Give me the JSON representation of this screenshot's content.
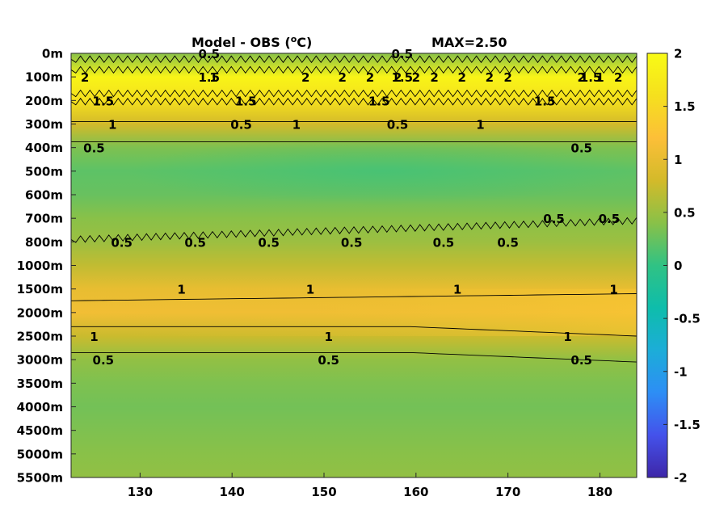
{
  "chart_data": {
    "type": "heatmap",
    "title": "Model - OBS (",
    "title_unit_super": "o",
    "title_unit_tail": "C)",
    "annotation": "MAX=2.50",
    "xlabel": "",
    "ylabel": "",
    "x_range": [
      122.5,
      184
    ],
    "x_ticks": [
      "130",
      "140",
      "150",
      "160",
      "170",
      "180"
    ],
    "y_ticks": [
      "0m",
      "100m",
      "200m",
      "300m",
      "400m",
      "500m",
      "600m",
      "700m",
      "800m",
      "1000m",
      "1500m",
      "2000m",
      "2500m",
      "3000m",
      "3500m",
      "4000m",
      "4500m",
      "5000m",
      "5500m"
    ],
    "colorbar": {
      "range": [
        -2,
        2
      ],
      "ticks": [
        "2",
        "1.5",
        "1",
        "0.5",
        "0",
        "-0.5",
        "-1",
        "-1.5",
        "-2"
      ],
      "colormap": "parula",
      "colors": [
        "#3e26a8",
        "#4452eb",
        "#2d8ef5",
        "#1cadd8",
        "#0ebdab",
        "#30c284",
        "#89c148",
        "#d3ba2a",
        "#fcbf38",
        "#f5e01e",
        "#f9fb15"
      ]
    },
    "depth_profile": [
      {
        "depth": "0m",
        "value": 0.4
      },
      {
        "depth": "100m",
        "value": 1.9
      },
      {
        "depth": "200m",
        "value": 1.6
      },
      {
        "depth": "300m",
        "value": 0.8
      },
      {
        "depth": "400m",
        "value": 0.35
      },
      {
        "depth": "500m",
        "value": 0.2
      },
      {
        "depth": "600m",
        "value": 0.25
      },
      {
        "depth": "700m",
        "value": 0.4
      },
      {
        "depth": "800m",
        "value": 0.5
      },
      {
        "depth": "1000m",
        "value": 0.7
      },
      {
        "depth": "1500m",
        "value": 1.0
      },
      {
        "depth": "2000m",
        "value": 1.1
      },
      {
        "depth": "2500m",
        "value": 0.75
      },
      {
        "depth": "3000m",
        "value": 0.45
      },
      {
        "depth": "3500m",
        "value": 0.35
      },
      {
        "depth": "4000m",
        "value": 0.3
      },
      {
        "depth": "4500m",
        "value": 0.35
      },
      {
        "depth": "5000m",
        "value": 0.4
      },
      {
        "depth": "5500m",
        "value": 0.45
      }
    ],
    "contour_labels": [
      {
        "text": "0.5",
        "x": 137.5,
        "depth": "0m"
      },
      {
        "text": "0.5",
        "x": 158.5,
        "depth": "0m"
      },
      {
        "text": "1",
        "x": 138,
        "depth": "100m"
      },
      {
        "text": "1.5",
        "x": 137.5,
        "depth": "100m"
      },
      {
        "text": "1.5",
        "x": 158.5,
        "depth": "100m"
      },
      {
        "text": "1",
        "x": 180,
        "depth": "100m"
      },
      {
        "text": "1.5",
        "x": 179,
        "depth": "100m"
      },
      {
        "text": "2",
        "x": 124,
        "depth": "100m"
      },
      {
        "text": "2",
        "x": 148,
        "depth": "100m"
      },
      {
        "text": "2",
        "x": 152,
        "depth": "100m"
      },
      {
        "text": "2",
        "x": 155,
        "depth": "100m"
      },
      {
        "text": "2",
        "x": 158,
        "depth": "100m"
      },
      {
        "text": "2",
        "x": 160,
        "depth": "100m"
      },
      {
        "text": "2",
        "x": 162,
        "depth": "100m"
      },
      {
        "text": "2",
        "x": 165,
        "depth": "100m"
      },
      {
        "text": "2",
        "x": 168,
        "depth": "100m"
      },
      {
        "text": "2",
        "x": 170,
        "depth": "100m"
      },
      {
        "text": "2",
        "x": 178,
        "depth": "100m"
      },
      {
        "text": "2",
        "x": 182,
        "depth": "100m"
      },
      {
        "text": "1.5",
        "x": 126,
        "depth": "200m"
      },
      {
        "text": "1.5",
        "x": 141.5,
        "depth": "200m"
      },
      {
        "text": "1.5",
        "x": 156,
        "depth": "200m"
      },
      {
        "text": "1.5",
        "x": 174,
        "depth": "200m"
      },
      {
        "text": "1",
        "x": 127,
        "depth": "300m"
      },
      {
        "text": "1",
        "x": 147,
        "depth": "300m"
      },
      {
        "text": "1",
        "x": 167,
        "depth": "300m"
      },
      {
        "text": "0.5",
        "x": 125,
        "depth": "400m"
      },
      {
        "text": "0.5",
        "x": 141,
        "depth": "300m"
      },
      {
        "text": "0.5",
        "x": 158,
        "depth": "300m"
      },
      {
        "text": "0.5",
        "x": 178,
        "depth": "400m"
      },
      {
        "text": "0.5",
        "x": 128,
        "depth": "800m"
      },
      {
        "text": "0.5",
        "x": 136,
        "depth": "800m"
      },
      {
        "text": "0.5",
        "x": 144,
        "depth": "800m"
      },
      {
        "text": "0.5",
        "x": 153,
        "depth": "800m"
      },
      {
        "text": "0.5",
        "x": 163,
        "depth": "800m"
      },
      {
        "text": "0.5",
        "x": 170,
        "depth": "800m"
      },
      {
        "text": "0.5",
        "x": 175,
        "depth": "700m"
      },
      {
        "text": "0.5",
        "x": 181,
        "depth": "700m"
      },
      {
        "text": "1",
        "x": 134.5,
        "depth": "1500m"
      },
      {
        "text": "1",
        "x": 148.5,
        "depth": "1500m"
      },
      {
        "text": "1",
        "x": 164.5,
        "depth": "1500m"
      },
      {
        "text": "1",
        "x": 181.5,
        "depth": "1500m"
      },
      {
        "text": "1",
        "x": 125,
        "depth": "2500m"
      },
      {
        "text": "1",
        "x": 150.5,
        "depth": "2500m"
      },
      {
        "text": "1",
        "x": 176.5,
        "depth": "2500m"
      },
      {
        "text": "0.5",
        "x": 126,
        "depth": "3000m"
      },
      {
        "text": "0.5",
        "x": 150.5,
        "depth": "3000m"
      },
      {
        "text": "0.5",
        "x": 178,
        "depth": "3000m"
      }
    ],
    "grid": false,
    "legend": "colorbar-right"
  }
}
